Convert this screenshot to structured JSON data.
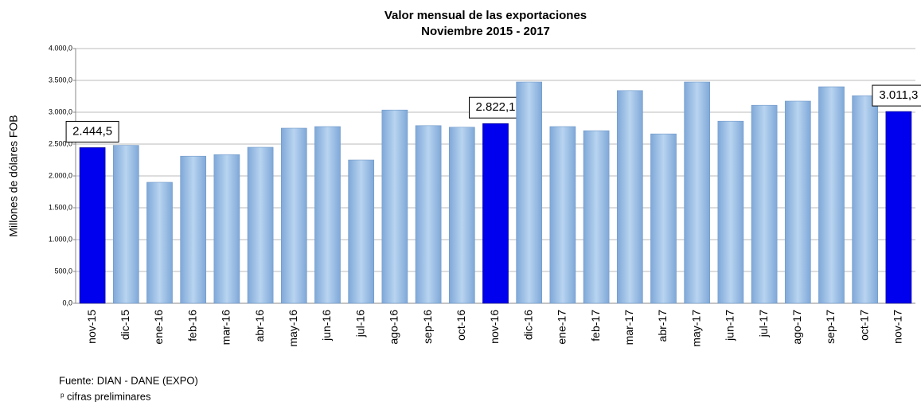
{
  "chart_data": {
    "type": "bar",
    "title": "Valor mensual de las exportaciones",
    "subtitle": "Noviembre 2015 - 2017",
    "y_label": "Millones de dólares FOB",
    "categories": [
      "nov-15",
      "dic-15",
      "ene-16",
      "feb-16",
      "mar-16",
      "abr-16",
      "may-16",
      "jun-16",
      "jul-16",
      "ago-16",
      "sep-16",
      "oct-16",
      "nov-16",
      "dic-16",
      "ene-17",
      "feb-17",
      "mar-17",
      "abr-17",
      "may-17",
      "jun-17",
      "jul-17",
      "ago-17",
      "sep-17",
      "oct-17",
      "nov-17"
    ],
    "values": [
      2444.5,
      2480,
      1900,
      2310,
      2335,
      2450,
      2750,
      2775,
      2250,
      3035,
      2790,
      2765,
      2822.1,
      3475,
      2775,
      2710,
      3340,
      2660,
      3475,
      2860,
      3110,
      3175,
      3400,
      3260,
      3011.3
    ],
    "value_labels": [
      "2.444,5",
      null,
      null,
      null,
      null,
      null,
      null,
      null,
      null,
      null,
      null,
      null,
      "2.822,1",
      null,
      null,
      null,
      null,
      null,
      null,
      null,
      null,
      null,
      null,
      null,
      "3.011,3"
    ],
    "colors": [
      "#0000ee",
      "#9dc3e6",
      "#9dc3e6",
      "#9dc3e6",
      "#9dc3e6",
      "#9dc3e6",
      "#9dc3e6",
      "#9dc3e6",
      "#9dc3e6",
      "#9dc3e6",
      "#9dc3e6",
      "#9dc3e6",
      "#0000ee",
      "#9dc3e6",
      "#9dc3e6",
      "#9dc3e6",
      "#9dc3e6",
      "#9dc3e6",
      "#9dc3e6",
      "#9dc3e6",
      "#9dc3e6",
      "#9dc3e6",
      "#9dc3e6",
      "#9dc3e6",
      "#0000ee"
    ],
    "ylim": [
      0,
      4000
    ],
    "yticks": [
      {
        "value": 0,
        "label": "0,0"
      },
      {
        "value": 500,
        "label": "500,0"
      },
      {
        "value": 1000,
        "label": "1.000,0"
      },
      {
        "value": 1500,
        "label": "1.500,0"
      },
      {
        "value": 2000,
        "label": "2.000,0"
      },
      {
        "value": 2500,
        "label": "2.500,0"
      },
      {
        "value": 3000,
        "label": "3.000,0"
      },
      {
        "value": 3500,
        "label": "3.500,0"
      },
      {
        "value": 4000,
        "label": "4.000,0"
      }
    ],
    "grid": true,
    "source": "Fuente: DIAN - DANE (EXPO)",
    "note_marker": "p",
    "note": "cifras preliminares"
  }
}
